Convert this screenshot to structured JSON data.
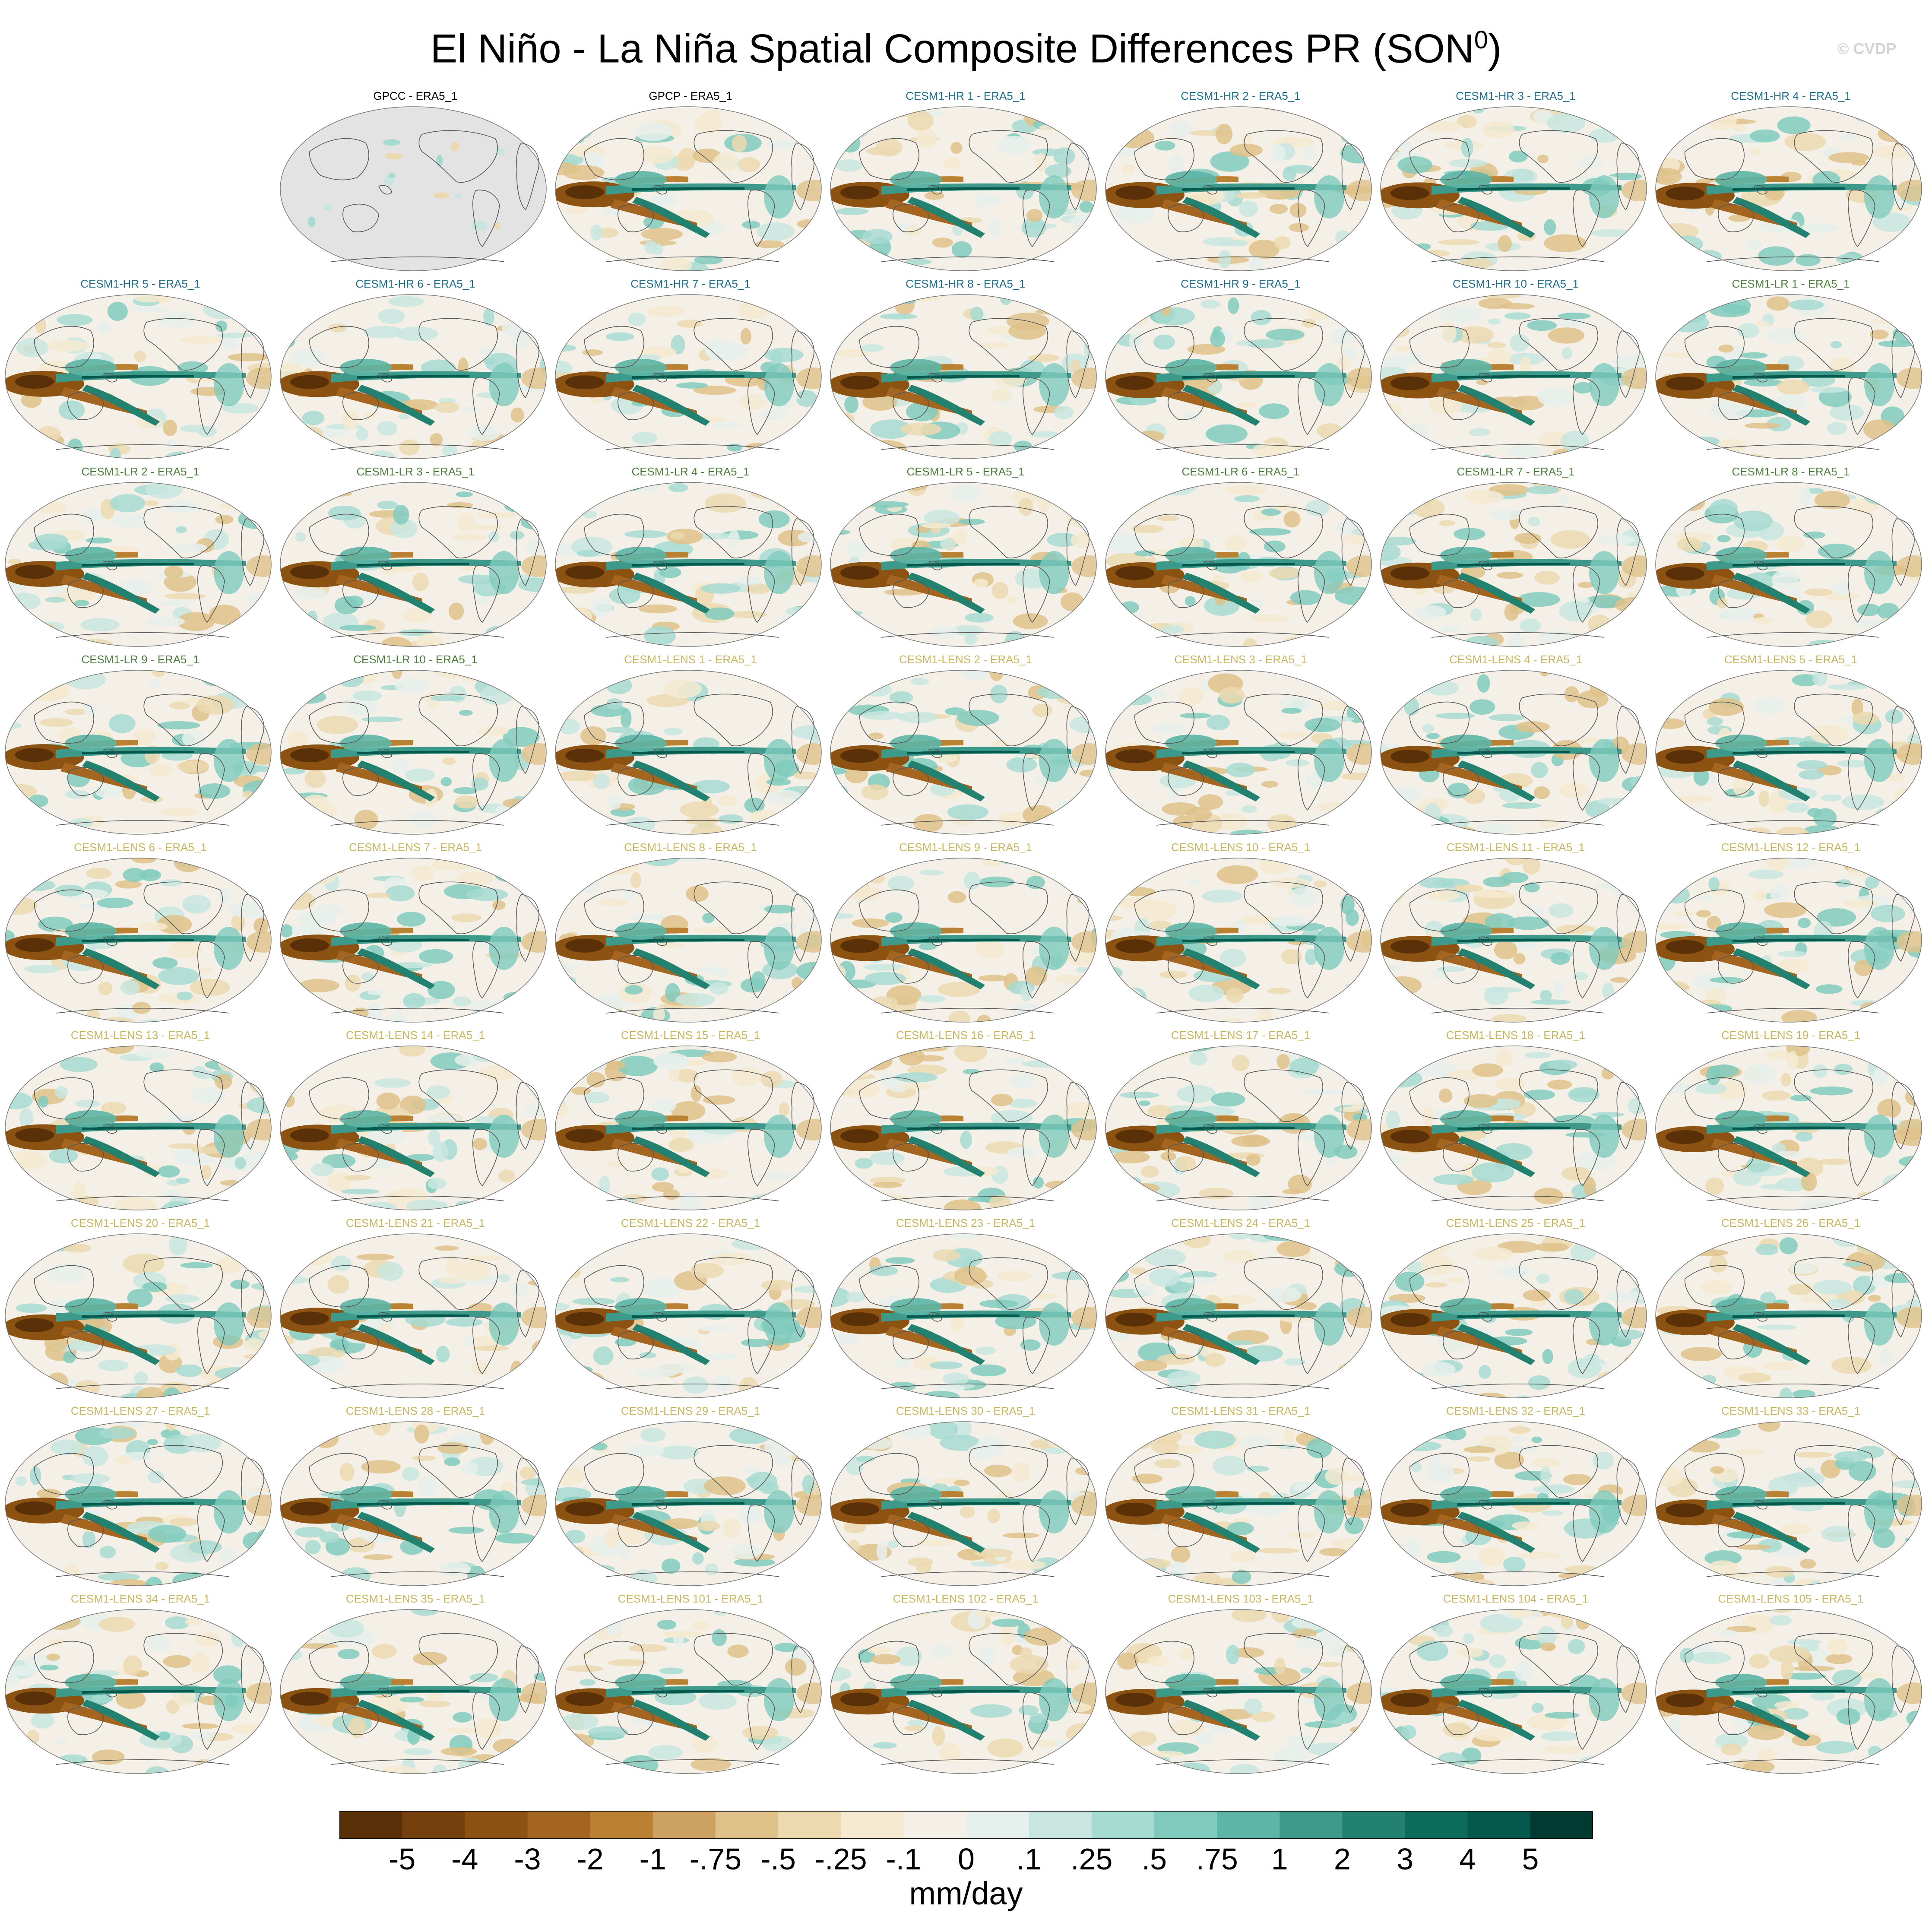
{
  "title": {
    "main": "El Niño - La Niña Spatial Composite Differences PR (SON",
    "superscript": "0",
    "close": ")"
  },
  "credit": "© CVDP",
  "colors": {
    "obs_label": "#000000",
    "hr_label": "#1f6f8b",
    "lr_label": "#4f7f3f",
    "lens_label": "#c9b660",
    "land_gray": "#e3e3e3",
    "coast": "#555555"
  },
  "panels": [
    {
      "label": "GPCC - ERA5_1",
      "group": "obs",
      "variant": "land"
    },
    {
      "label": "GPCP - ERA5_1",
      "group": "obs",
      "variant": "obs"
    },
    {
      "label": "CESM1-HR 1 - ERA5_1",
      "group": "hr"
    },
    {
      "label": "CESM1-HR 2 - ERA5_1",
      "group": "hr"
    },
    {
      "label": "CESM1-HR 3 - ERA5_1",
      "group": "hr"
    },
    {
      "label": "CESM1-HR 4 - ERA5_1",
      "group": "hr"
    },
    {
      "label": "CESM1-HR 5 - ERA5_1",
      "group": "hr"
    },
    {
      "label": "CESM1-HR 6 - ERA5_1",
      "group": "hr"
    },
    {
      "label": "CESM1-HR 7 - ERA5_1",
      "group": "hr"
    },
    {
      "label": "CESM1-HR 8 - ERA5_1",
      "group": "hr"
    },
    {
      "label": "CESM1-HR 9 - ERA5_1",
      "group": "hr"
    },
    {
      "label": "CESM1-HR 10 - ERA5_1",
      "group": "hr"
    },
    {
      "label": "CESM1-LR 1 - ERA5_1",
      "group": "lr"
    },
    {
      "label": "CESM1-LR 2 - ERA5_1",
      "group": "lr"
    },
    {
      "label": "CESM1-LR 3 - ERA5_1",
      "group": "lr"
    },
    {
      "label": "CESM1-LR 4 - ERA5_1",
      "group": "lr"
    },
    {
      "label": "CESM1-LR 5 - ERA5_1",
      "group": "lr"
    },
    {
      "label": "CESM1-LR 6 - ERA5_1",
      "group": "lr"
    },
    {
      "label": "CESM1-LR 7 - ERA5_1",
      "group": "lr"
    },
    {
      "label": "CESM1-LR 8 - ERA5_1",
      "group": "lr"
    },
    {
      "label": "CESM1-LR 9 - ERA5_1",
      "group": "lr"
    },
    {
      "label": "CESM1-LR 10 - ERA5_1",
      "group": "lr"
    },
    {
      "label": "CESM1-LENS 1 - ERA5_1",
      "group": "lens"
    },
    {
      "label": "CESM1-LENS 2 - ERA5_1",
      "group": "lens"
    },
    {
      "label": "CESM1-LENS 3 - ERA5_1",
      "group": "lens"
    },
    {
      "label": "CESM1-LENS 4 - ERA5_1",
      "group": "lens"
    },
    {
      "label": "CESM1-LENS 5 - ERA5_1",
      "group": "lens"
    },
    {
      "label": "CESM1-LENS 6 - ERA5_1",
      "group": "lens"
    },
    {
      "label": "CESM1-LENS 7 - ERA5_1",
      "group": "lens"
    },
    {
      "label": "CESM1-LENS 8 - ERA5_1",
      "group": "lens"
    },
    {
      "label": "CESM1-LENS 9 - ERA5_1",
      "group": "lens"
    },
    {
      "label": "CESM1-LENS 10 - ERA5_1",
      "group": "lens"
    },
    {
      "label": "CESM1-LENS 11 - ERA5_1",
      "group": "lens"
    },
    {
      "label": "CESM1-LENS 12 - ERA5_1",
      "group": "lens"
    },
    {
      "label": "CESM1-LENS 13 - ERA5_1",
      "group": "lens"
    },
    {
      "label": "CESM1-LENS 14 - ERA5_1",
      "group": "lens"
    },
    {
      "label": "CESM1-LENS 15 - ERA5_1",
      "group": "lens"
    },
    {
      "label": "CESM1-LENS 16 - ERA5_1",
      "group": "lens"
    },
    {
      "label": "CESM1-LENS 17 - ERA5_1",
      "group": "lens"
    },
    {
      "label": "CESM1-LENS 18 - ERA5_1",
      "group": "lens"
    },
    {
      "label": "CESM1-LENS 19 - ERA5_1",
      "group": "lens"
    },
    {
      "label": "CESM1-LENS 20 - ERA5_1",
      "group": "lens"
    },
    {
      "label": "CESM1-LENS 21 - ERA5_1",
      "group": "lens"
    },
    {
      "label": "CESM1-LENS 22 - ERA5_1",
      "group": "lens"
    },
    {
      "label": "CESM1-LENS 23 - ERA5_1",
      "group": "lens"
    },
    {
      "label": "CESM1-LENS 24 - ERA5_1",
      "group": "lens"
    },
    {
      "label": "CESM1-LENS 25 - ERA5_1",
      "group": "lens"
    },
    {
      "label": "CESM1-LENS 26 - ERA5_1",
      "group": "lens"
    },
    {
      "label": "CESM1-LENS 27 - ERA5_1",
      "group": "lens"
    },
    {
      "label": "CESM1-LENS 28 - ERA5_1",
      "group": "lens"
    },
    {
      "label": "CESM1-LENS 29 - ERA5_1",
      "group": "lens"
    },
    {
      "label": "CESM1-LENS 30 - ERA5_1",
      "group": "lens"
    },
    {
      "label": "CESM1-LENS 31 - ERA5_1",
      "group": "lens"
    },
    {
      "label": "CESM1-LENS 32 - ERA5_1",
      "group": "lens"
    },
    {
      "label": "CESM1-LENS 33 - ERA5_1",
      "group": "lens"
    },
    {
      "label": "CESM1-LENS 34 - ERA5_1",
      "group": "lens"
    },
    {
      "label": "CESM1-LENS 35 - ERA5_1",
      "group": "lens"
    },
    {
      "label": "CESM1-LENS 101 - ERA5_1",
      "group": "lens"
    },
    {
      "label": "CESM1-LENS 102 - ERA5_1",
      "group": "lens"
    },
    {
      "label": "CESM1-LENS 103 - ERA5_1",
      "group": "lens"
    },
    {
      "label": "CESM1-LENS 104 - ERA5_1",
      "group": "lens"
    },
    {
      "label": "CESM1-LENS 105 - ERA5_1",
      "group": "lens"
    }
  ],
  "colorbar": {
    "units": "mm/day",
    "tick_labels": [
      "-5",
      "-4",
      "-3",
      "-2",
      "-1",
      "-.75",
      "-.5",
      "-.25",
      "-.1",
      "0",
      ".1",
      ".25",
      ".5",
      ".75",
      "1",
      "2",
      "3",
      "4",
      "5"
    ],
    "colors": [
      "#5a3008",
      "#74400d",
      "#8b5212",
      "#a3651f",
      "#ba8133",
      "#cda260",
      "#dfc28a",
      "#ecd9b0",
      "#f5ead0",
      "#f4f0e8",
      "#e6f0ec",
      "#c8e6df",
      "#a6dbd1",
      "#80cbbd",
      "#5cb5a5",
      "#3d9a8a",
      "#22826f",
      "#0d6b5b",
      "#05594c",
      "#013a30"
    ]
  }
}
